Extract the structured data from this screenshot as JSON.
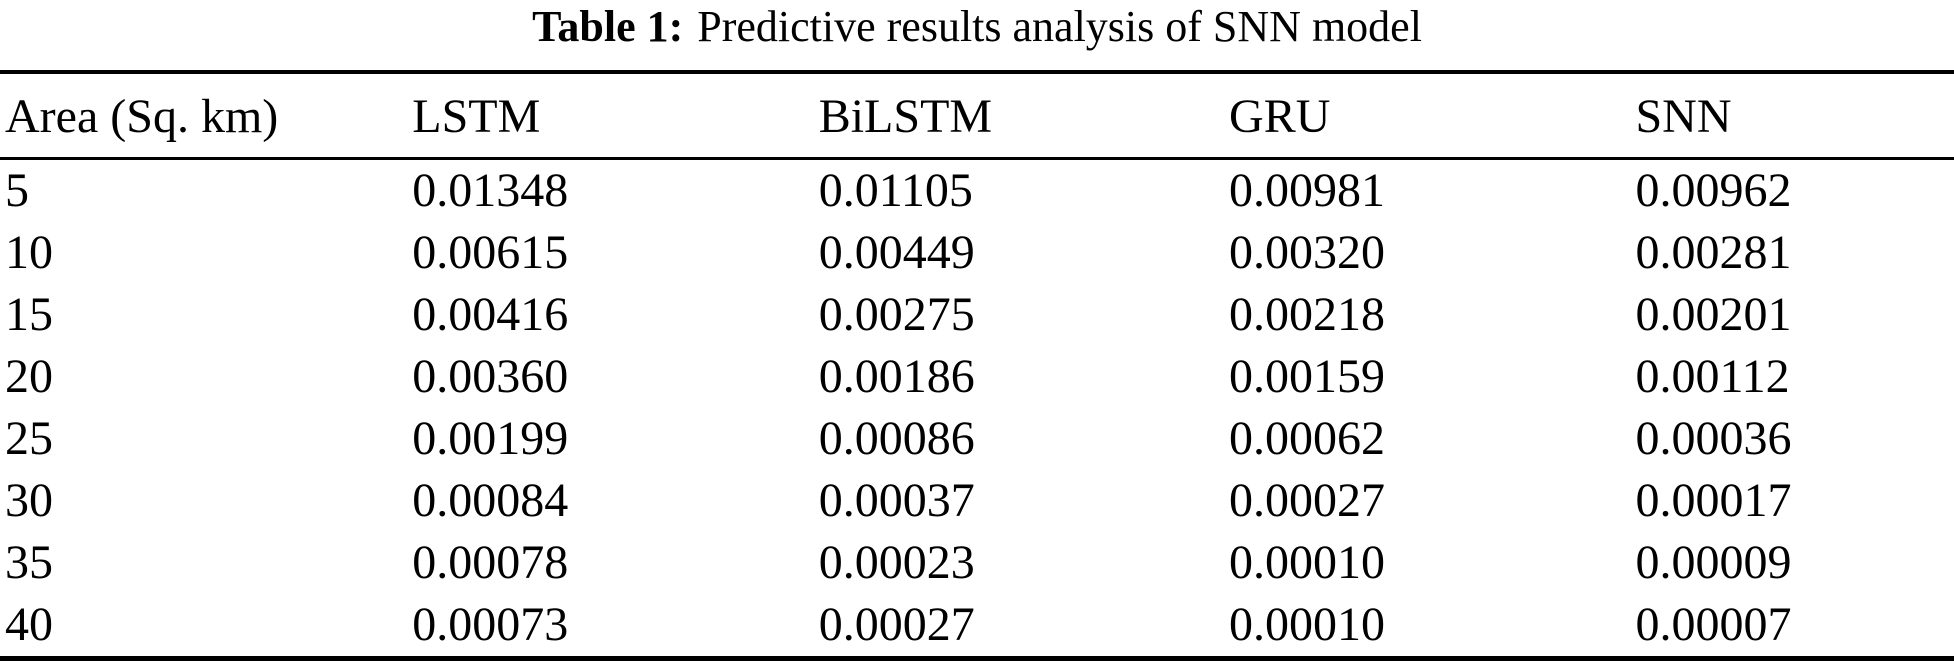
{
  "caption": {
    "label": "Table 1:",
    "text": "Predictive results analysis of SNN model"
  },
  "table": {
    "columns": [
      "Area (Sq. km)",
      "LSTM",
      "BiLSTM",
      "GRU",
      "SNN"
    ],
    "rows": [
      [
        "5",
        "0.01348",
        "0.01105",
        "0.00981",
        "0.00962"
      ],
      [
        "10",
        "0.00615",
        "0.00449",
        "0.00320",
        "0.00281"
      ],
      [
        "15",
        "0.00416",
        "0.00275",
        "0.00218",
        "0.00201"
      ],
      [
        "20",
        "0.00360",
        "0.00186",
        "0.00159",
        "0.00112"
      ],
      [
        "25",
        "0.00199",
        "0.00086",
        "0.00062",
        "0.00036"
      ],
      [
        "30",
        "0.00084",
        "0.00037",
        "0.00027",
        "0.00017"
      ],
      [
        "35",
        "0.00078",
        "0.00023",
        "0.00010",
        "0.00009"
      ],
      [
        "40",
        "0.00073",
        "0.00027",
        "0.00010",
        "0.00007"
      ]
    ],
    "text_color": "#000000",
    "background_color": "#ffffff",
    "rule_color": "#000000"
  },
  "chart_data": {
    "type": "table",
    "title": "Table 1: Predictive results analysis of SNN model",
    "categories": [
      5,
      10,
      15,
      20,
      25,
      30,
      35,
      40
    ],
    "xlabel": "Area (Sq. km)",
    "series": [
      {
        "name": "LSTM",
        "values": [
          0.01348,
          0.00615,
          0.00416,
          0.0036,
          0.00199,
          0.00084,
          0.00078,
          0.00073
        ]
      },
      {
        "name": "BiLSTM",
        "values": [
          0.01105,
          0.00449,
          0.00275,
          0.00186,
          0.00086,
          0.00037,
          0.00023,
          0.00027
        ]
      },
      {
        "name": "GRU",
        "values": [
          0.00981,
          0.0032,
          0.00218,
          0.00159,
          0.00062,
          0.00027,
          0.0001,
          0.0001
        ]
      },
      {
        "name": "SNN",
        "values": [
          0.00962,
          0.00281,
          0.00201,
          0.00112,
          0.00036,
          0.00017,
          9e-05,
          7e-05
        ]
      }
    ]
  }
}
